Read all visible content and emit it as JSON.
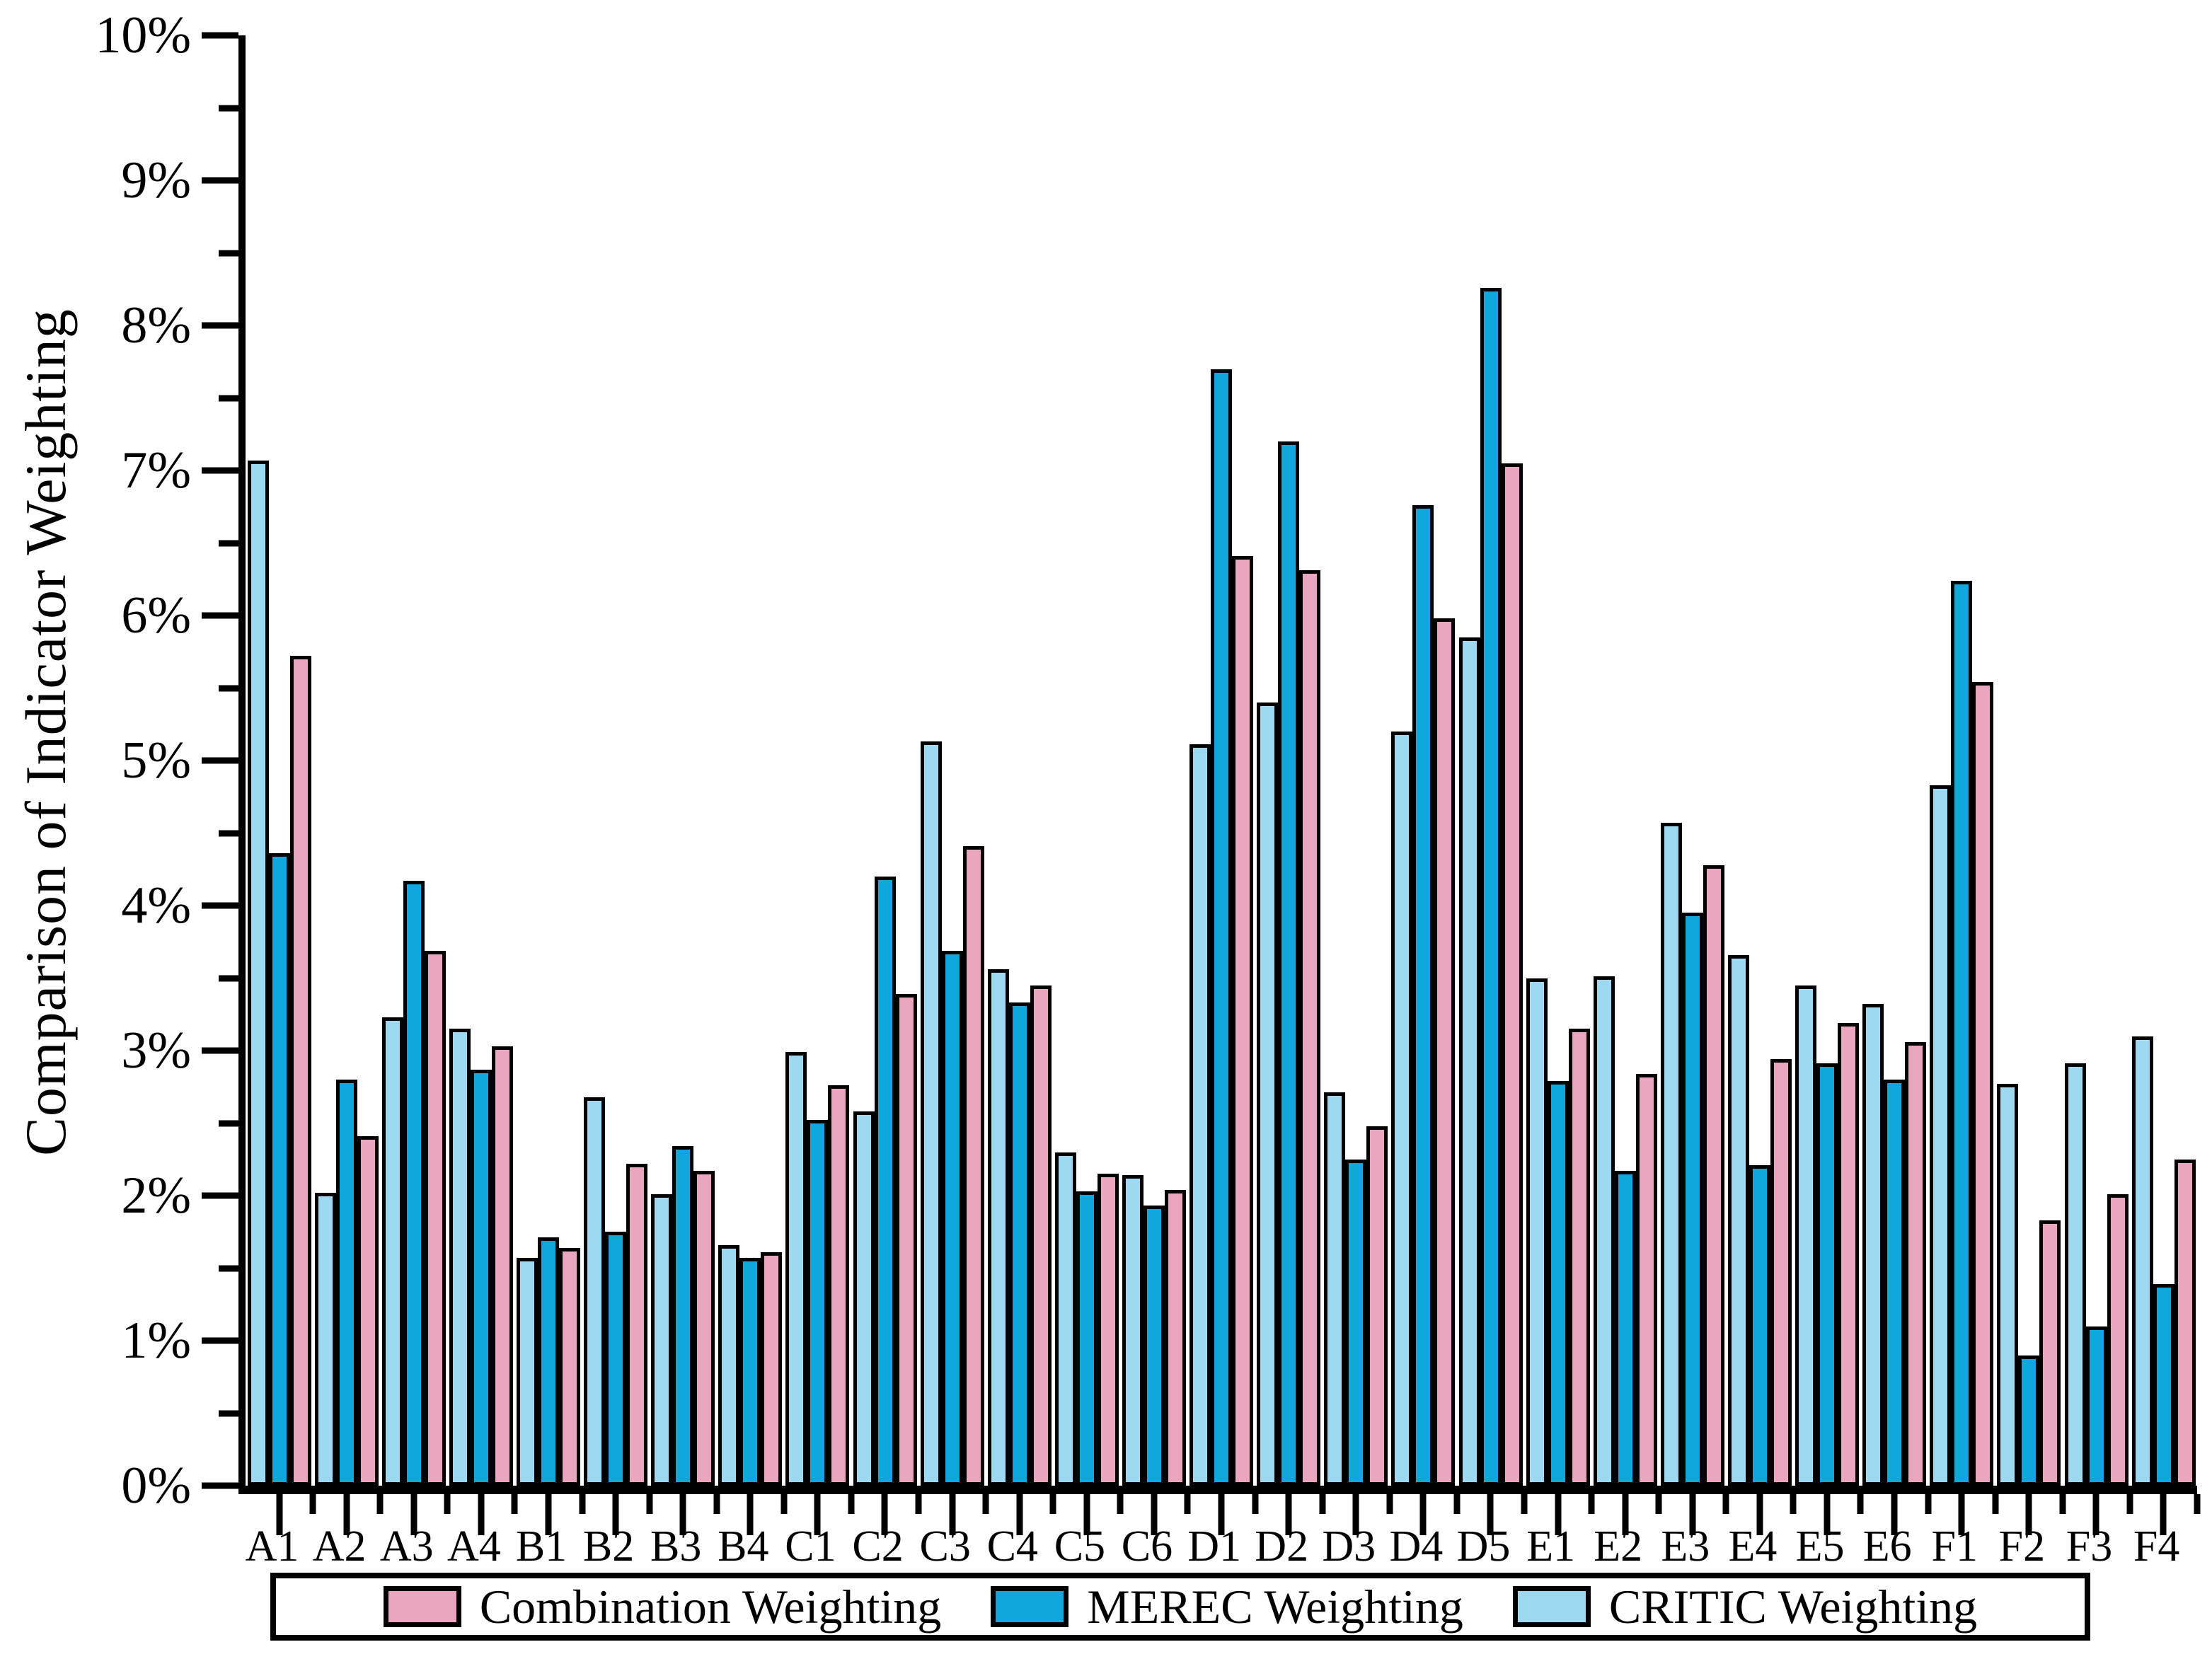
{
  "figure": {
    "background": "#FFFFFF",
    "y_axis_title": "Comparison of Indicator Weighting"
  },
  "chart_data": {
    "type": "bar",
    "title": "",
    "xlabel": "",
    "ylabel": "Comparison of Indicator Weighting",
    "y_unit": "%",
    "ylim": [
      0,
      10
    ],
    "y_major_tick_step": 1,
    "y_minor_tick_step": 0.5,
    "y_tick_labels": [
      "0%",
      "1%",
      "2%",
      "3%",
      "4%",
      "5%",
      "6%",
      "7%",
      "8%",
      "9%",
      "10%"
    ],
    "grid": false,
    "legend_position": "bottom",
    "categories": [
      "A1",
      "A2",
      "A3",
      "A4",
      "B1",
      "B2",
      "B3",
      "B4",
      "C1",
      "C2",
      "C3",
      "C4",
      "C5",
      "C6",
      "D1",
      "D2",
      "D3",
      "D4",
      "D5",
      "E1",
      "E2",
      "E3",
      "E4",
      "E5",
      "E6",
      "F1",
      "F2",
      "F3",
      "F4"
    ],
    "bar_order": [
      "CRITIC Weighting",
      "MEREC Weighting",
      "Combination Weighting"
    ],
    "series": [
      {
        "name": "Combination Weighting",
        "color": "#EAA5C1",
        "values": [
          5.72,
          2.41,
          3.69,
          3.03,
          1.64,
          2.22,
          2.17,
          1.61,
          2.76,
          3.39,
          4.41,
          3.45,
          2.15,
          2.04,
          6.41,
          6.31,
          2.48,
          5.98,
          7.05,
          3.15,
          2.84,
          4.28,
          2.94,
          3.19,
          3.06,
          5.54,
          1.83,
          2.01,
          2.25
        ]
      },
      {
        "name": "MEREC Weighting",
        "color": "#10A7DD",
        "values": [
          4.36,
          2.8,
          4.17,
          2.87,
          1.71,
          1.75,
          2.34,
          1.57,
          2.52,
          4.2,
          3.69,
          3.33,
          2.03,
          1.93,
          7.7,
          7.2,
          2.25,
          6.76,
          8.26,
          2.79,
          2.17,
          3.95,
          2.21,
          2.91,
          2.8,
          6.24,
          0.9,
          1.1,
          1.39
        ]
      },
      {
        "name": "CRITIC Weighting",
        "color": "#9FD8F1",
        "values": [
          7.07,
          2.02,
          3.23,
          3.15,
          1.57,
          2.68,
          2.01,
          1.66,
          2.99,
          2.58,
          5.13,
          3.56,
          2.3,
          2.14,
          5.11,
          5.4,
          2.71,
          5.2,
          5.85,
          3.5,
          3.51,
          4.57,
          3.66,
          3.45,
          3.32,
          4.83,
          2.77,
          2.91,
          3.1
        ]
      }
    ]
  }
}
